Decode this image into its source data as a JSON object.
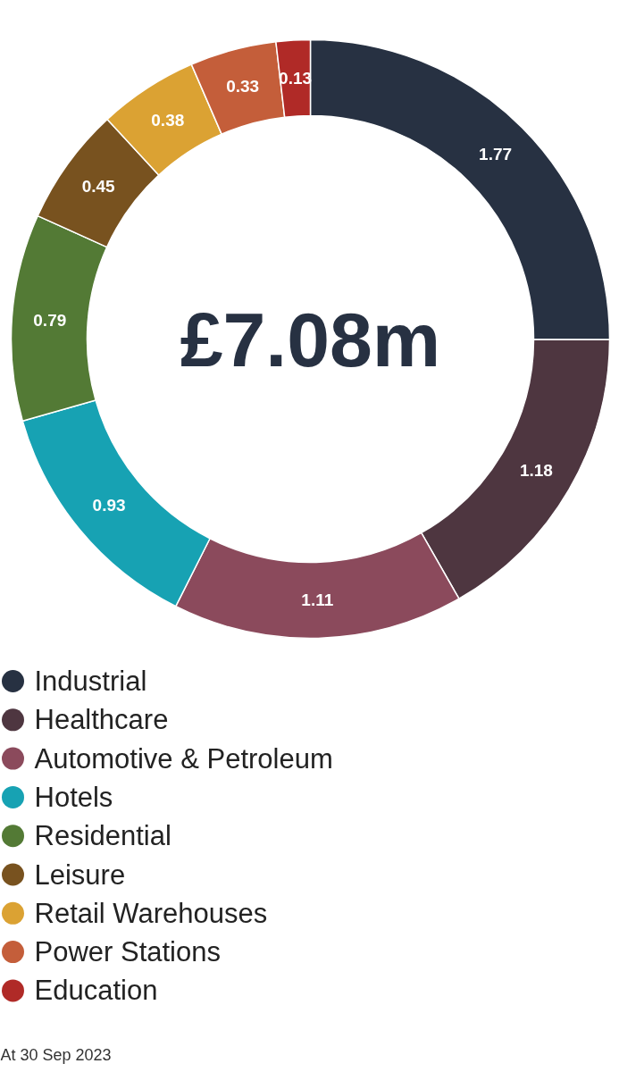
{
  "chart_data": {
    "type": "donut",
    "title": "£7.08m",
    "categories": [
      "Industrial",
      "Healthcare",
      "Automotive & Petroleum",
      "Hotels",
      "Residential",
      "Leisure",
      "Retail Warehouses",
      "Power Stations",
      "Education"
    ],
    "values": [
      1.77,
      1.18,
      1.11,
      0.93,
      0.79,
      0.45,
      0.38,
      0.33,
      0.13
    ],
    "colors": [
      "#273142",
      "#4e3640",
      "#8b4a5c",
      "#17a2b3",
      "#537a35",
      "#78521f",
      "#dba233",
      "#c45e3a",
      "#b02a27"
    ],
    "data_labels": true,
    "legend": "bottom",
    "annotations": [
      "At 30 Sep 2023"
    ]
  }
}
